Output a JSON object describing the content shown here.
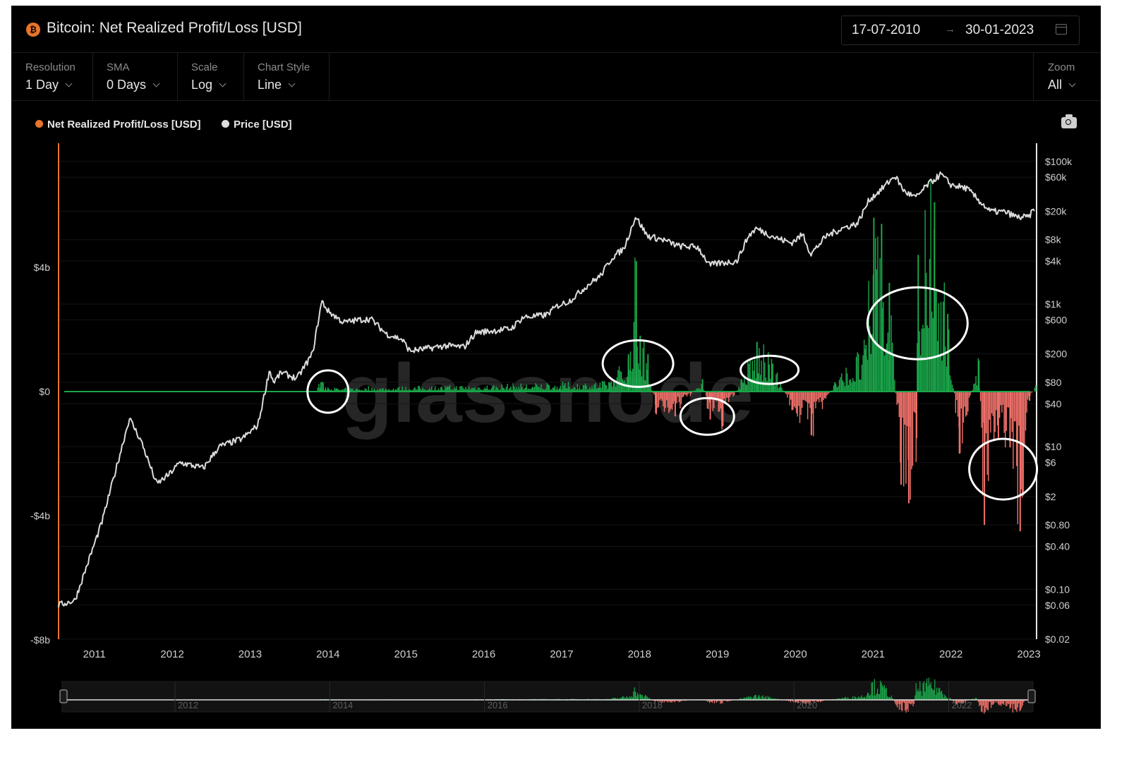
{
  "header": {
    "title": "Bitcoin: Net Realized Profit/Loss [USD]",
    "coin_symbol": "₿",
    "date_from": "17-07-2010",
    "date_to": "30-01-2023",
    "date_sep": "→"
  },
  "controls": {
    "resolution": {
      "label": "Resolution",
      "value": "1 Day"
    },
    "sma": {
      "label": "SMA",
      "value": "0 Days"
    },
    "scale": {
      "label": "Scale",
      "value": "Log"
    },
    "chart_style": {
      "label": "Chart Style",
      "value": "Line"
    },
    "zoom": {
      "label": "Zoom",
      "value": "All"
    }
  },
  "legend": [
    {
      "name": "Net Realized Profit/Loss [USD]",
      "color": "#e8742a"
    },
    {
      "name": "Price [USD]",
      "color": "#dddddd"
    }
  ],
  "watermark": "glassnode",
  "colors": {
    "profit": "#1aa64a",
    "loss": "#f0716a",
    "price": "#dcdcdc",
    "left_axis": "#e8742a"
  },
  "chart_data": {
    "type": "line",
    "title": "Bitcoin: Net Realized Profit/Loss [USD]",
    "x_ticks": [
      "2011",
      "2012",
      "2013",
      "2014",
      "2015",
      "2016",
      "2017",
      "2018",
      "2019",
      "2020",
      "2021",
      "2022",
      "2023"
    ],
    "left_axis": {
      "scale": "linear",
      "unit": "USD",
      "range": [
        -8000000000.0,
        8000000000.0
      ],
      "ticks": [
        {
          "label": "$4b",
          "value": 4000000000.0
        },
        {
          "label": "$0",
          "value": 0
        },
        {
          "label": "-$4b",
          "value": -4000000000.0
        },
        {
          "label": "-$8b",
          "value": -8000000000.0
        }
      ]
    },
    "right_axis": {
      "scale": "log",
      "unit": "USD",
      "range": [
        0.02,
        150000
      ],
      "ticks": [
        {
          "label": "$100k",
          "value": 100000
        },
        {
          "label": "$60k",
          "value": 60000
        },
        {
          "label": "$20k",
          "value": 20000
        },
        {
          "label": "$8k",
          "value": 8000
        },
        {
          "label": "$4k",
          "value": 4000
        },
        {
          "label": "$1k",
          "value": 1000
        },
        {
          "label": "$600",
          "value": 600
        },
        {
          "label": "$200",
          "value": 200
        },
        {
          "label": "$80",
          "value": 80
        },
        {
          "label": "$40",
          "value": 40
        },
        {
          "label": "$10",
          "value": 10
        },
        {
          "label": "$6",
          "value": 6
        },
        {
          "label": "$2",
          "value": 2
        },
        {
          "label": "$0.80",
          "value": 0.8
        },
        {
          "label": "$0.40",
          "value": 0.4
        },
        {
          "label": "$0.10",
          "value": 0.1
        },
        {
          "label": "$0.06",
          "value": 0.06
        },
        {
          "label": "$0.02",
          "value": 0.02
        }
      ]
    },
    "series": [
      {
        "name": "Price [USD]",
        "axis": "right",
        "points": [
          [
            2010.54,
            0.06
          ],
          [
            2010.75,
            0.07
          ],
          [
            2010.95,
            0.3
          ],
          [
            2011.1,
            0.9
          ],
          [
            2011.3,
            6
          ],
          [
            2011.45,
            25
          ],
          [
            2011.6,
            12
          ],
          [
            2011.8,
            3
          ],
          [
            2011.95,
            4
          ],
          [
            2012.1,
            6
          ],
          [
            2012.4,
            5
          ],
          [
            2012.6,
            10
          ],
          [
            2012.9,
            13
          ],
          [
            2013.1,
            20
          ],
          [
            2013.25,
            120
          ],
          [
            2013.3,
            80
          ],
          [
            2013.4,
            110
          ],
          [
            2013.6,
            90
          ],
          [
            2013.8,
            200
          ],
          [
            2013.92,
            1100
          ],
          [
            2014.0,
            800
          ],
          [
            2014.2,
            550
          ],
          [
            2014.4,
            600
          ],
          [
            2014.55,
            620
          ],
          [
            2014.75,
            380
          ],
          [
            2014.95,
            320
          ],
          [
            2015.05,
            220
          ],
          [
            2015.3,
            240
          ],
          [
            2015.5,
            260
          ],
          [
            2015.75,
            250
          ],
          [
            2015.9,
            400
          ],
          [
            2016.1,
            420
          ],
          [
            2016.35,
            450
          ],
          [
            2016.5,
            650
          ],
          [
            2016.8,
            700
          ],
          [
            2016.95,
            950
          ],
          [
            2017.1,
            1100
          ],
          [
            2017.35,
            1900
          ],
          [
            2017.5,
            2500
          ],
          [
            2017.65,
            4500
          ],
          [
            2017.8,
            6000
          ],
          [
            2017.95,
            17000
          ],
          [
            2018.1,
            9000
          ],
          [
            2018.3,
            8000
          ],
          [
            2018.5,
            6500
          ],
          [
            2018.75,
            6300
          ],
          [
            2018.9,
            3500
          ],
          [
            2019.0,
            3700
          ],
          [
            2019.25,
            4000
          ],
          [
            2019.4,
            9000
          ],
          [
            2019.5,
            11500
          ],
          [
            2019.75,
            8500
          ],
          [
            2019.95,
            7200
          ],
          [
            2020.1,
            9500
          ],
          [
            2020.2,
            5000
          ],
          [
            2020.4,
            9000
          ],
          [
            2020.6,
            11500
          ],
          [
            2020.8,
            13500
          ],
          [
            2020.95,
            29000
          ],
          [
            2021.1,
            40000
          ],
          [
            2021.28,
            63000
          ],
          [
            2021.4,
            38000
          ],
          [
            2021.55,
            31000
          ],
          [
            2021.7,
            47000
          ],
          [
            2021.87,
            66000
          ],
          [
            2022.0,
            47000
          ],
          [
            2022.2,
            42000
          ],
          [
            2022.35,
            29000
          ],
          [
            2022.5,
            20000
          ],
          [
            2022.7,
            19500
          ],
          [
            2022.85,
            16500
          ],
          [
            2023.0,
            16500
          ],
          [
            2023.08,
            23000
          ]
        ]
      },
      {
        "name": "Net Realized Profit/Loss [USD]",
        "axis": "left",
        "points": [
          [
            2013.9,
            300000000.0
          ],
          [
            2014.1,
            100000000.0
          ],
          [
            2017.6,
            300000000.0
          ],
          [
            2017.85,
            1200000000.0
          ],
          [
            2017.95,
            4200000000.0
          ],
          [
            2018.0,
            1800000000.0
          ],
          [
            2018.1,
            1200000000.0
          ],
          [
            2018.2,
            -700000000.0
          ],
          [
            2018.45,
            -800000000.0
          ],
          [
            2018.8,
            400000000.0
          ],
          [
            2018.9,
            -900000000.0
          ],
          [
            2019.05,
            -1100000000.0
          ],
          [
            2019.3,
            400000000.0
          ],
          [
            2019.5,
            1600000000.0
          ],
          [
            2019.7,
            900000000.0
          ],
          [
            2019.95,
            -600000000.0
          ],
          [
            2020.2,
            -1400000000.0
          ],
          [
            2020.5,
            300000000.0
          ],
          [
            2020.9,
            1500000000.0
          ],
          [
            2021.0,
            5600000000.0
          ],
          [
            2021.1,
            5400000000.0
          ],
          [
            2021.2,
            3500000000.0
          ],
          [
            2021.35,
            -3000000000.0
          ],
          [
            2021.45,
            -3600000000.0
          ],
          [
            2021.55,
            -1500000000.0
          ],
          [
            2021.57,
            4400000000.0
          ],
          [
            2021.78,
            6100000000.0
          ],
          [
            2021.95,
            2500000000.0
          ],
          [
            2022.1,
            -2000000000.0
          ],
          [
            2022.35,
            1000000000.0
          ],
          [
            2022.42,
            -4300000000.0
          ],
          [
            2022.6,
            -1500000000.0
          ],
          [
            2022.75,
            -1800000000.0
          ],
          [
            2022.88,
            -4500000000.0
          ],
          [
            2023.0,
            -300000000.0
          ],
          [
            2023.08,
            200000000.0
          ]
        ]
      }
    ],
    "annotations": [
      {
        "shape": "ellipse",
        "x": 2014.0,
        "y": 0
      },
      {
        "shape": "ellipse",
        "x": 2017.98,
        "y": 900000000.0
      },
      {
        "shape": "ellipse",
        "x": 2018.87,
        "y": -800000000.0
      },
      {
        "shape": "ellipse",
        "x": 2019.67,
        "y": 700000000.0
      },
      {
        "shape": "ellipse",
        "x": 2021.57,
        "y": 2200000000.0
      },
      {
        "shape": "ellipse",
        "x": 2022.67,
        "y": -2500000000.0
      }
    ],
    "navigator": {
      "ticks": [
        "2012",
        "2014",
        "2016",
        "2018",
        "2020",
        "2022"
      ]
    }
  }
}
